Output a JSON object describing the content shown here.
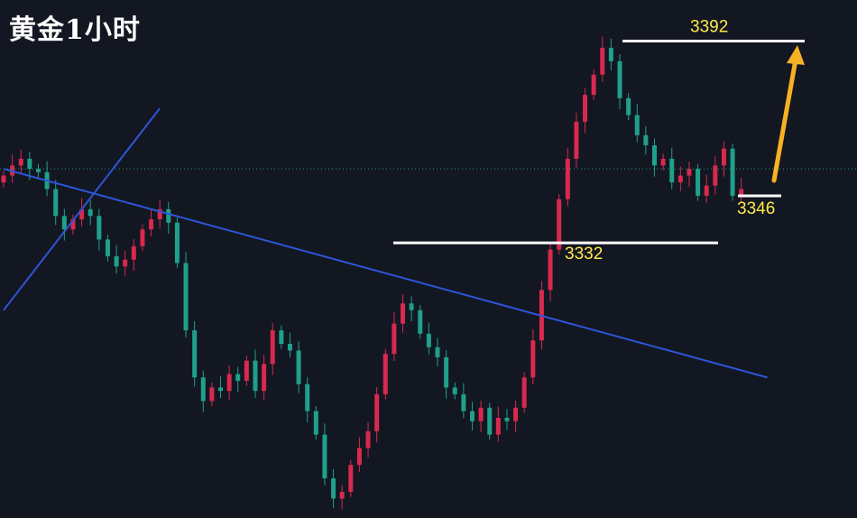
{
  "title": "黄金1小时",
  "colors": {
    "background": "#131722",
    "candle_up": "#d8294f",
    "candle_down": "#1fa08a",
    "trendline": "#2d55d6",
    "level_line": "#ffffff",
    "label_text": "#ffe94a",
    "arrow": "#f7b124",
    "current_price_line": "#1fa08a"
  },
  "chart_data": {
    "type": "candlestick",
    "instrument": "黄金",
    "timeframe": "1小时",
    "candles_close_estimate": [
      3352,
      3355,
      3357,
      3354,
      3353,
      3348,
      3340,
      3336,
      3339,
      3342,
      3340,
      3333,
      3328,
      3325,
      3327,
      3331,
      3336,
      3339,
      3342,
      3338,
      3326,
      3306,
      3292,
      3285,
      3289,
      3288,
      3293,
      3291,
      3297,
      3288,
      3296,
      3306,
      3302,
      3300,
      3290,
      3282,
      3275,
      3262,
      3256,
      3258,
      3266,
      3271,
      3276,
      3287,
      3299,
      3308,
      3314,
      3312,
      3305,
      3301,
      3298,
      3289,
      3287,
      3282,
      3279,
      3283,
      3275,
      3280,
      3279,
      3283,
      3292,
      3303,
      3318,
      3330,
      3345,
      3357,
      3368,
      3376,
      3382,
      3390,
      3386,
      3375,
      3370,
      3364,
      3361,
      3355,
      3357,
      3350,
      3352,
      3354,
      3346,
      3349,
      3355,
      3360,
      3346,
      3348
    ],
    "levels": [
      {
        "label": "3392",
        "value": 3392
      },
      {
        "label": "3332",
        "value": 3332
      },
      {
        "label": "3346",
        "value": 3346
      }
    ],
    "trendlines": [
      {
        "name": "descending",
        "from": [
          0,
          3354
        ],
        "to": [
          88,
          3292
        ]
      },
      {
        "name": "ascending",
        "from": [
          0,
          3312
        ],
        "to": [
          18,
          3372
        ]
      }
    ],
    "arrow_direction": "up",
    "arrow_target": 3392,
    "current_price": 3354
  }
}
